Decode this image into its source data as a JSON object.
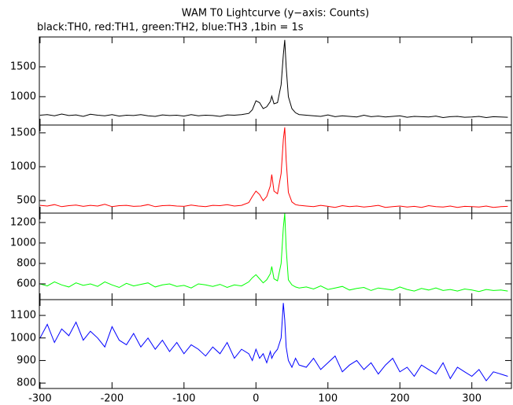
{
  "chart_data": [
    {
      "type": "line",
      "title": "WAM T0 Lightcurve (y−axis: Counts)",
      "subtitle": "black:TH0, red:TH1, green:TH2, blue:TH3 ,1bin = 1s",
      "x": [
        -300,
        -290,
        -280,
        -270,
        -260,
        -250,
        -240,
        -230,
        -220,
        -210,
        -200,
        -190,
        -180,
        -170,
        -160,
        -150,
        -140,
        -130,
        -120,
        -110,
        -100,
        -90,
        -80,
        -70,
        -60,
        -50,
        -40,
        -30,
        -20,
        -10,
        -5,
        0,
        5,
        10,
        15,
        20,
        22,
        25,
        30,
        35,
        38,
        40,
        42,
        45,
        50,
        55,
        60,
        70,
        80,
        90,
        100,
        110,
        120,
        130,
        140,
        150,
        160,
        170,
        180,
        190,
        200,
        210,
        220,
        230,
        240,
        250,
        260,
        270,
        280,
        290,
        300,
        310,
        320,
        330,
        340,
        350
      ],
      "series": [
        {
          "color": "#000000",
          "values": [
            690,
            700,
            680,
            710,
            685,
            695,
            670,
            705,
            690,
            680,
            700,
            675,
            690,
            685,
            700,
            680,
            670,
            695,
            685,
            690,
            675,
            700,
            680,
            690,
            685,
            670,
            695,
            690,
            700,
            720,
            780,
            930,
            900,
            800,
            830,
            920,
            1010,
            880,
            900,
            1200,
            1700,
            1950,
            1500,
            1000,
            800,
            730,
            700,
            690,
            680,
            670,
            695,
            665,
            680,
            670,
            660,
            690,
            665,
            675,
            660,
            670,
            680,
            655,
            670,
            665,
            660,
            675,
            650,
            665,
            670,
            655,
            660,
            670,
            650,
            665,
            660,
            655
          ]
        }
      ],
      "xlim": [
        -301,
        355
      ],
      "ylim": [
        525,
        2000
      ],
      "yticks": [
        1000,
        1500
      ]
    },
    {
      "type": "line",
      "x": [
        -300,
        -290,
        -280,
        -270,
        -260,
        -250,
        -240,
        -230,
        -220,
        -210,
        -200,
        -190,
        -180,
        -170,
        -160,
        -150,
        -140,
        -130,
        -120,
        -110,
        -100,
        -90,
        -80,
        -70,
        -60,
        -50,
        -40,
        -30,
        -20,
        -10,
        -5,
        0,
        5,
        10,
        15,
        20,
        22,
        25,
        30,
        35,
        38,
        40,
        42,
        45,
        50,
        55,
        60,
        70,
        80,
        90,
        100,
        110,
        120,
        130,
        140,
        150,
        160,
        170,
        180,
        190,
        200,
        210,
        220,
        230,
        240,
        250,
        260,
        270,
        280,
        290,
        300,
        310,
        320,
        330,
        340,
        350
      ],
      "series": [
        {
          "color": "#ff0000",
          "values": [
            430,
            420,
            440,
            410,
            425,
            435,
            415,
            430,
            420,
            445,
            410,
            425,
            430,
            415,
            420,
            440,
            410,
            425,
            430,
            420,
            415,
            435,
            420,
            410,
            430,
            425,
            440,
            420,
            430,
            470,
            560,
            640,
            590,
            500,
            560,
            720,
            885,
            640,
            600,
            900,
            1400,
            1580,
            1100,
            620,
            480,
            440,
            430,
            420,
            410,
            430,
            415,
            400,
            425,
            410,
            420,
            405,
            415,
            430,
            400,
            410,
            420,
            405,
            415,
            400,
            425,
            410,
            405,
            420,
            400,
            415,
            410,
            405,
            420,
            400,
            410,
            415
          ]
        }
      ],
      "xlim": [
        -301,
        355
      ],
      "ylim": [
        315,
        1615
      ],
      "yticks": [
        500,
        1000,
        1500
      ]
    },
    {
      "type": "line",
      "x": [
        -300,
        -290,
        -280,
        -270,
        -260,
        -250,
        -240,
        -230,
        -220,
        -210,
        -200,
        -190,
        -180,
        -170,
        -160,
        -150,
        -140,
        -130,
        -120,
        -110,
        -100,
        -90,
        -80,
        -70,
        -60,
        -50,
        -40,
        -30,
        -20,
        -10,
        -5,
        0,
        5,
        10,
        15,
        20,
        22,
        25,
        30,
        35,
        38,
        40,
        42,
        45,
        50,
        55,
        60,
        70,
        80,
        90,
        100,
        110,
        120,
        130,
        140,
        150,
        160,
        170,
        180,
        190,
        200,
        210,
        220,
        230,
        240,
        250,
        260,
        270,
        280,
        290,
        300,
        310,
        320,
        330,
        340,
        350
      ],
      "series": [
        {
          "color": "#00ff00",
          "values": [
            600,
            580,
            620,
            590,
            570,
            610,
            585,
            600,
            575,
            620,
            590,
            565,
            605,
            580,
            595,
            610,
            570,
            590,
            600,
            575,
            585,
            560,
            600,
            590,
            575,
            595,
            565,
            590,
            580,
            620,
            660,
            690,
            650,
            610,
            640,
            700,
            770,
            650,
            630,
            800,
            1150,
            1290,
            950,
            640,
            590,
            570,
            560,
            570,
            550,
            580,
            545,
            560,
            575,
            540,
            555,
            565,
            535,
            560,
            550,
            540,
            570,
            545,
            530,
            555,
            540,
            560,
            535,
            545,
            530,
            550,
            540,
            525,
            545,
            535,
            540,
            530
          ]
        }
      ],
      "xlim": [
        -301,
        355
      ],
      "ylim": [
        446,
        1292
      ],
      "yticks": [
        600,
        800,
        1000,
        1200
      ]
    },
    {
      "type": "line",
      "x": [
        -300,
        -290,
        -280,
        -270,
        -260,
        -250,
        -240,
        -230,
        -220,
        -210,
        -200,
        -190,
        -180,
        -170,
        -160,
        -150,
        -140,
        -130,
        -120,
        -110,
        -100,
        -90,
        -80,
        -70,
        -60,
        -50,
        -40,
        -30,
        -20,
        -10,
        -5,
        0,
        5,
        10,
        15,
        20,
        22,
        25,
        30,
        35,
        38,
        40,
        42,
        45,
        50,
        55,
        60,
        70,
        80,
        90,
        100,
        110,
        120,
        130,
        140,
        150,
        160,
        170,
        180,
        190,
        200,
        210,
        220,
        230,
        240,
        250,
        260,
        270,
        280,
        290,
        300,
        310,
        320,
        330,
        340,
        350
      ],
      "series": [
        {
          "color": "#0000ff",
          "values": [
            1000,
            1060,
            980,
            1040,
            1010,
            1070,
            990,
            1030,
            1000,
            960,
            1050,
            990,
            970,
            1020,
            960,
            1000,
            950,
            990,
            940,
            980,
            930,
            970,
            950,
            920,
            960,
            930,
            980,
            910,
            950,
            930,
            900,
            950,
            910,
            930,
            890,
            940,
            910,
            930,
            950,
            1000,
            1155,
            1080,
            960,
            900,
            870,
            910,
            880,
            870,
            910,
            860,
            890,
            920,
            850,
            880,
            900,
            860,
            890,
            840,
            880,
            910,
            850,
            870,
            830,
            880,
            860,
            840,
            890,
            820,
            870,
            850,
            830,
            860,
            810,
            850,
            840,
            830
          ]
        }
      ],
      "xlim": [
        -301,
        355
      ],
      "ylim": [
        776,
        1170
      ],
      "yticks": [
        800,
        900,
        1000,
        1100
      ],
      "xticks": [
        -300,
        -200,
        -100,
        0,
        100,
        200,
        300
      ]
    }
  ]
}
